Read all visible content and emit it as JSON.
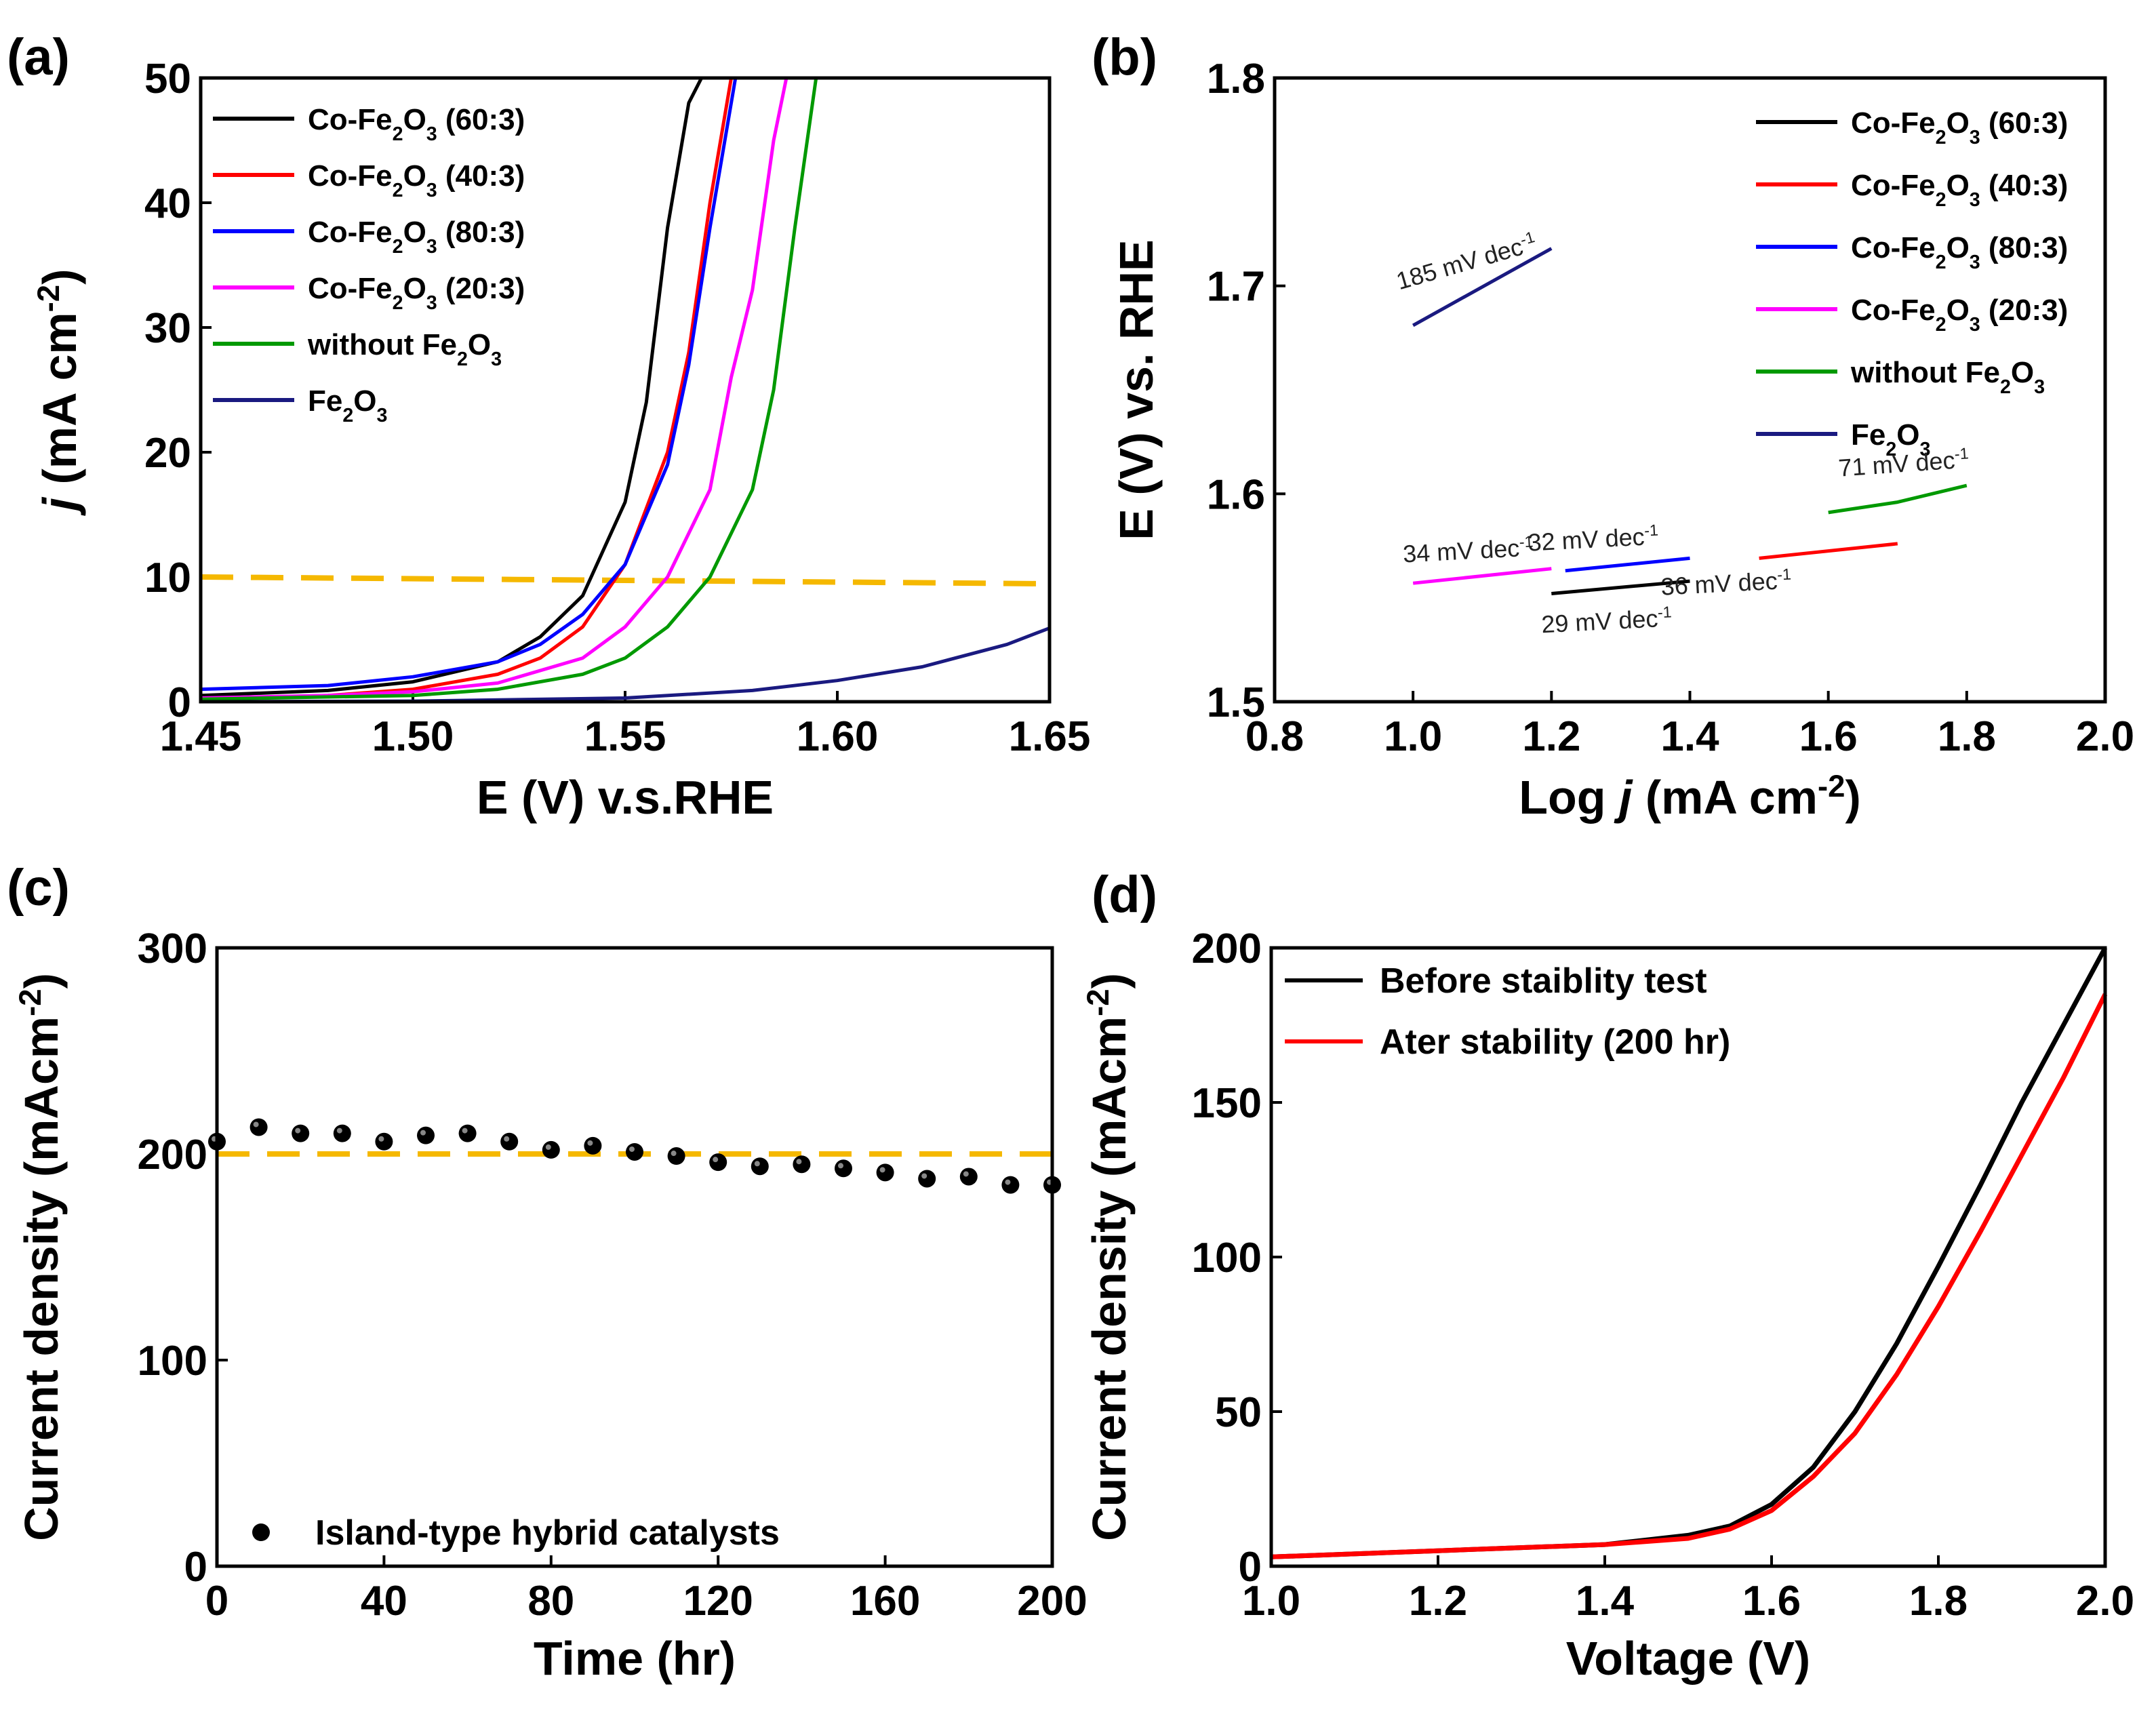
{
  "chart_data": [
    {
      "panel": "(a)",
      "type": "line",
      "xlabel": "E (V) v.s.RHE",
      "ylabel": "j (mA cm-2)",
      "ylabel_parts": [
        "j",
        " (mA cm",
        "-2",
        ")"
      ],
      "xlim": [
        1.45,
        1.65
      ],
      "ylim": [
        0,
        50
      ],
      "xticks": [
        "1.45",
        "1.50",
        "1.55",
        "1.60",
        "1.65"
      ],
      "yticks": [
        "0",
        "10",
        "20",
        "30",
        "40",
        "50"
      ],
      "reference_line": {
        "y": 10,
        "color": "#F5B800",
        "style": "dashed"
      },
      "series": [
        {
          "name": "Co-Fe2O3 (60:3)",
          "label_parts": [
            "Co-Fe",
            "2",
            "O",
            "3",
            " (60:3)"
          ],
          "color": "#000000",
          "x": [
            1.45,
            1.48,
            1.5,
            1.52,
            1.53,
            1.54,
            1.55,
            1.555,
            1.56,
            1.565,
            1.568
          ],
          "y": [
            0.5,
            0.9,
            1.6,
            3.2,
            5.2,
            8.5,
            16,
            24,
            38,
            48,
            50
          ]
        },
        {
          "name": "Co-Fe2O3 (40:3)",
          "label_parts": [
            "Co-Fe",
            "2",
            "O",
            "3",
            " (40:3)"
          ],
          "color": "#FF0000",
          "x": [
            1.45,
            1.48,
            1.5,
            1.52,
            1.53,
            1.54,
            1.55,
            1.56,
            1.565,
            1.57,
            1.575
          ],
          "y": [
            0.2,
            0.5,
            1.0,
            2.2,
            3.5,
            6,
            11,
            20,
            28,
            40,
            50
          ]
        },
        {
          "name": "Co-Fe2O3 (80:3)",
          "label_parts": [
            "Co-Fe",
            "2",
            "O",
            "3",
            " (80:3)"
          ],
          "color": "#0000FF",
          "x": [
            1.45,
            1.48,
            1.5,
            1.52,
            1.53,
            1.54,
            1.55,
            1.56,
            1.565,
            1.57,
            1.576
          ],
          "y": [
            1.0,
            1.3,
            2.0,
            3.2,
            4.6,
            7,
            11,
            19,
            27,
            38,
            50
          ]
        },
        {
          "name": "Co-Fe2O3 (20:3)",
          "label_parts": [
            "Co-Fe",
            "2",
            "O",
            "3",
            " (20:3)"
          ],
          "color": "#FF00FF",
          "x": [
            1.45,
            1.48,
            1.5,
            1.52,
            1.54,
            1.55,
            1.56,
            1.57,
            1.575,
            1.58,
            1.585,
            1.588
          ],
          "y": [
            0.3,
            0.5,
            0.8,
            1.5,
            3.5,
            6,
            10,
            17,
            26,
            33,
            45,
            50
          ]
        },
        {
          "name": "without Fe2O3",
          "label_parts": [
            "without Fe",
            "2",
            "O",
            "3"
          ],
          "color": "#009900",
          "x": [
            1.45,
            1.5,
            1.52,
            1.54,
            1.55,
            1.56,
            1.57,
            1.58,
            1.585,
            1.59,
            1.595
          ],
          "y": [
            0.2,
            0.5,
            1.0,
            2.2,
            3.5,
            6,
            10,
            17,
            25,
            38,
            50
          ]
        },
        {
          "name": "Fe2O3",
          "label_parts": [
            "Fe",
            "2",
            "O",
            "3"
          ],
          "color": "#1A1A80",
          "x": [
            1.45,
            1.5,
            1.55,
            1.58,
            1.6,
            1.62,
            1.64,
            1.65
          ],
          "y": [
            0.0,
            0.05,
            0.3,
            0.9,
            1.7,
            2.8,
            4.6,
            5.9
          ]
        }
      ]
    },
    {
      "panel": "(b)",
      "type": "line",
      "xlabel": "Log j (mA cm-2)",
      "xlabel_parts": [
        "Log ",
        "j",
        " (mA cm",
        "-2",
        ")"
      ],
      "ylabel": "E (V) vs. RHE",
      "xlim": [
        0.8,
        2.0
      ],
      "ylim": [
        1.5,
        1.8
      ],
      "xticks": [
        "0.8",
        "1.0",
        "1.2",
        "1.4",
        "1.6",
        "1.8",
        "2.0"
      ],
      "yticks": [
        "1.5",
        "1.6",
        "1.7",
        "1.8"
      ],
      "series": [
        {
          "name": "Co-Fe2O3 (60:3)",
          "label_parts": [
            "Co-Fe",
            "2",
            "O",
            "3",
            " (60:3)"
          ],
          "color": "#000000",
          "x": [
            1.2,
            1.4
          ],
          "y": [
            1.552,
            1.558
          ],
          "slope_label": "29 mV dec-1"
        },
        {
          "name": "Co-Fe2O3 (40:3)",
          "label_parts": [
            "Co-Fe",
            "2",
            "O",
            "3",
            " (40:3)"
          ],
          "color": "#FF0000",
          "x": [
            1.5,
            1.7
          ],
          "y": [
            1.569,
            1.576
          ],
          "slope_label": "36 mV dec-1"
        },
        {
          "name": "Co-Fe2O3 (80:3)",
          "label_parts": [
            "Co-Fe",
            "2",
            "O",
            "3",
            " (80:3)"
          ],
          "color": "#0000FF",
          "x": [
            1.22,
            1.4
          ],
          "y": [
            1.563,
            1.569
          ],
          "slope_label": "32 mV dec-1"
        },
        {
          "name": "Co-Fe2O3 (20:3)",
          "label_parts": [
            "Co-Fe",
            "2",
            "O",
            "3",
            " (20:3)"
          ],
          "color": "#FF00FF",
          "x": [
            1.0,
            1.2
          ],
          "y": [
            1.557,
            1.564
          ],
          "slope_label": "34 mV dec-1"
        },
        {
          "name": "without Fe2O3",
          "label_parts": [
            "without Fe",
            "2",
            "O",
            "3"
          ],
          "color": "#009900",
          "x": [
            1.6,
            1.7,
            1.75,
            1.8
          ],
          "y": [
            1.591,
            1.596,
            1.6,
            1.604
          ],
          "slope_label": "71 mV dec-1"
        },
        {
          "name": "Fe2O3",
          "label_parts": [
            "Fe",
            "2",
            "O",
            "3"
          ],
          "color": "#1A1A80",
          "x": [
            1.0,
            1.2
          ],
          "y": [
            1.681,
            1.718
          ],
          "slope_label": "185 mV dec-1"
        }
      ]
    },
    {
      "panel": "(c)",
      "type": "scatter",
      "xlabel": "Time (hr)",
      "ylabel": "Current density (mAcm-2)",
      "ylabel_parts": [
        "Current density (mAcm",
        "-2",
        ")"
      ],
      "xlim": [
        0,
        200
      ],
      "ylim": [
        0,
        300
      ],
      "xticks": [
        "0",
        "40",
        "80",
        "120",
        "160",
        "200"
      ],
      "yticks": [
        "0",
        "100",
        "200",
        "300"
      ],
      "reference_line": {
        "y": 200,
        "color": "#F5B800",
        "style": "dashed"
      },
      "series": [
        {
          "name": "Island-type hybrid catalysts",
          "color": "#000000",
          "x": [
            0,
            10,
            20,
            30,
            40,
            50,
            60,
            70,
            80,
            90,
            100,
            110,
            120,
            130,
            140,
            150,
            160,
            170,
            180,
            190,
            200
          ],
          "y": [
            206,
            213,
            210,
            210,
            206,
            209,
            210,
            206,
            202,
            204,
            201,
            199,
            196,
            194,
            195,
            193,
            191,
            188,
            189,
            185,
            185
          ]
        }
      ]
    },
    {
      "panel": "(d)",
      "type": "line",
      "xlabel": "Voltage (V)",
      "ylabel": "Current density (mAcm-2)",
      "ylabel_parts": [
        "Current density (mAcm",
        "-2",
        ")"
      ],
      "xlim": [
        1.0,
        2.0
      ],
      "ylim": [
        0,
        200
      ],
      "xticks": [
        "1.0",
        "1.2",
        "1.4",
        "1.6",
        "1.8",
        "2.0"
      ],
      "yticks": [
        "0",
        "50",
        "100",
        "150",
        "200"
      ],
      "series": [
        {
          "name": "Before staiblity test",
          "color": "#000000",
          "x": [
            1.0,
            1.2,
            1.4,
            1.5,
            1.55,
            1.6,
            1.65,
            1.7,
            1.75,
            1.8,
            1.85,
            1.9,
            1.95,
            2.0
          ],
          "y": [
            3,
            5,
            7,
            10,
            13,
            20,
            32,
            50,
            72,
            97,
            123,
            150,
            175,
            200
          ]
        },
        {
          "name": "Ater stability (200 hr)",
          "color": "#FF0000",
          "x": [
            1.0,
            1.2,
            1.4,
            1.5,
            1.55,
            1.6,
            1.65,
            1.7,
            1.75,
            1.8,
            1.85,
            1.9,
            1.95,
            2.0
          ],
          "y": [
            3,
            5,
            7,
            9,
            12,
            18,
            29,
            43,
            62,
            84,
            108,
            133,
            158,
            185
          ]
        }
      ]
    }
  ]
}
